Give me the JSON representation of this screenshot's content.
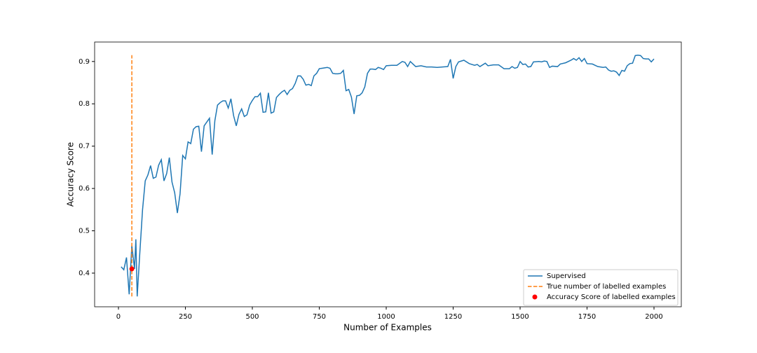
{
  "chart_data": {
    "type": "line",
    "xlabel": "Number of Examples",
    "ylabel": "Accuracy Score",
    "xlim": [
      -89,
      2102
    ],
    "ylim": [
      0.3205,
      0.946
    ],
    "xticks": [
      0,
      250,
      500,
      750,
      1000,
      1250,
      1500,
      1750,
      2000
    ],
    "yticks": [
      0.4,
      0.5,
      0.6,
      0.7,
      0.8,
      0.9
    ],
    "grid": false,
    "legend": "lower right",
    "series": [
      {
        "name": "Supervised",
        "type": "line",
        "color": "#1f77b4",
        "x": [
          10,
          20,
          30,
          40,
          50,
          60,
          65,
          70,
          80,
          90,
          100,
          110,
          120,
          130,
          140,
          150,
          160,
          170,
          180,
          190,
          200,
          210,
          220,
          230,
          240,
          250,
          260,
          270,
          280,
          290,
          300,
          310,
          320,
          330,
          340,
          350,
          360,
          370,
          380,
          390,
          400,
          410,
          420,
          430,
          440,
          450,
          460,
          470,
          480,
          490,
          500,
          510,
          520,
          530,
          540,
          550,
          560,
          570,
          580,
          590,
          600,
          610,
          620,
          630,
          640,
          650,
          660,
          670,
          680,
          690,
          700,
          710,
          720,
          730,
          740,
          750,
          760,
          770,
          780,
          790,
          800,
          810,
          820,
          830,
          840,
          850,
          860,
          870,
          880,
          890,
          900,
          910,
          920,
          930,
          940,
          950,
          960,
          970,
          980,
          990,
          1000,
          1020,
          1040,
          1060,
          1070,
          1080,
          1090,
          1100,
          1110,
          1130,
          1150,
          1170,
          1190,
          1210,
          1230,
          1240,
          1250,
          1260,
          1270,
          1290,
          1310,
          1330,
          1340,
          1350,
          1370,
          1380,
          1400,
          1420,
          1440,
          1460,
          1470,
          1480,
          1490,
          1500,
          1510,
          1520,
          1530,
          1540,
          1550,
          1570,
          1580,
          1590,
          1600,
          1610,
          1620,
          1640,
          1650,
          1670,
          1690,
          1700,
          1710,
          1720,
          1730,
          1740,
          1750,
          1770,
          1790,
          1810,
          1820,
          1830,
          1840,
          1850,
          1860,
          1870,
          1880,
          1890,
          1900,
          1910,
          1920,
          1930,
          1940,
          1950,
          1960,
          1970,
          1980,
          1990,
          2000
        ],
        "values": [
          0.415,
          0.408,
          0.437,
          0.35,
          0.465,
          0.41,
          0.48,
          0.345,
          0.45,
          0.55,
          0.618,
          0.632,
          0.654,
          0.624,
          0.627,
          0.655,
          0.668,
          0.618,
          0.635,
          0.673,
          0.615,
          0.59,
          0.542,
          0.587,
          0.678,
          0.67,
          0.71,
          0.706,
          0.74,
          0.746,
          0.747,
          0.687,
          0.748,
          0.757,
          0.766,
          0.68,
          0.76,
          0.797,
          0.803,
          0.807,
          0.807,
          0.79,
          0.812,
          0.772,
          0.748,
          0.775,
          0.788,
          0.77,
          0.774,
          0.797,
          0.808,
          0.817,
          0.817,
          0.825,
          0.78,
          0.781,
          0.826,
          0.778,
          0.781,
          0.815,
          0.822,
          0.828,
          0.832,
          0.822,
          0.832,
          0.836,
          0.848,
          0.866,
          0.866,
          0.858,
          0.844,
          0.846,
          0.843,
          0.866,
          0.872,
          0.883,
          0.884,
          0.885,
          0.886,
          0.884,
          0.872,
          0.871,
          0.871,
          0.872,
          0.879,
          0.831,
          0.834,
          0.816,
          0.776,
          0.819,
          0.82,
          0.826,
          0.84,
          0.872,
          0.882,
          0.882,
          0.881,
          0.886,
          0.884,
          0.881,
          0.89,
          0.891,
          0.891,
          0.9,
          0.898,
          0.888,
          0.9,
          0.894,
          0.888,
          0.89,
          0.887,
          0.887,
          0.886,
          0.887,
          0.888,
          0.905,
          0.86,
          0.888,
          0.899,
          0.903,
          0.895,
          0.891,
          0.893,
          0.888,
          0.896,
          0.89,
          0.892,
          0.892,
          0.883,
          0.883,
          0.888,
          0.884,
          0.886,
          0.9,
          0.893,
          0.894,
          0.887,
          0.888,
          0.899,
          0.9,
          0.899,
          0.901,
          0.9,
          0.886,
          0.889,
          0.888,
          0.894,
          0.897,
          0.903,
          0.907,
          0.903,
          0.909,
          0.9,
          0.907,
          0.895,
          0.894,
          0.888,
          0.886,
          0.887,
          0.88,
          0.877,
          0.878,
          0.875,
          0.867,
          0.879,
          0.877,
          0.89,
          0.895,
          0.896,
          0.914,
          0.915,
          0.914,
          0.907,
          0.906,
          0.906,
          0.899,
          0.906
        ]
      },
      {
        "name": "True number of labelled examples",
        "type": "dashed",
        "color": "#ff7f0e",
        "x": [
          50,
          50
        ],
        "values": [
          0.345,
          0.915
        ]
      },
      {
        "name": "Accuracy Score of labelled examples",
        "type": "scatter",
        "color": "#ff0000",
        "x": [
          50
        ],
        "values": [
          0.41
        ]
      }
    ]
  }
}
